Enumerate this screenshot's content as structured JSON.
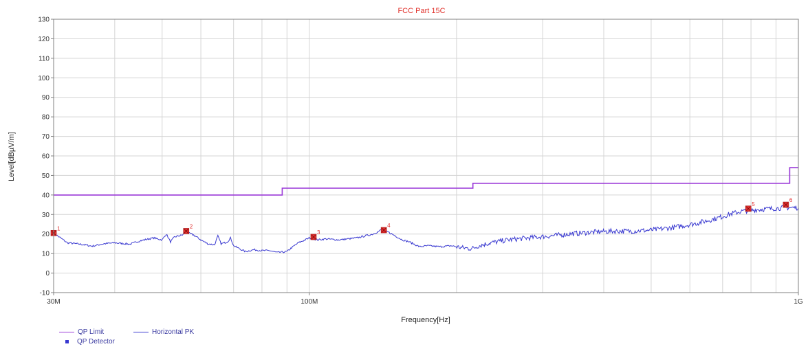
{
  "chart_data": {
    "type": "line",
    "title": "FCC Part 15C",
    "title_color": "#e0302a",
    "xlabel": "Frequency[Hz]",
    "ylabel": "Level[dBµV/m]",
    "x_scale": "log",
    "xlim_hz": [
      30000000,
      1000000000
    ],
    "ylim": [
      -10,
      130
    ],
    "y_ticks": [
      -10,
      0,
      10,
      20,
      30,
      40,
      50,
      60,
      70,
      80,
      90,
      100,
      110,
      120,
      130
    ],
    "x_tick_labels": [
      {
        "hz": 30000000,
        "label": "30M"
      },
      {
        "hz": 100000000,
        "label": "100M"
      },
      {
        "hz": 1000000000,
        "label": "1G"
      }
    ],
    "x_grid_hz": [
      40000000,
      50000000,
      60000000,
      70000000,
      80000000,
      90000000,
      100000000,
      200000000,
      300000000,
      400000000,
      500000000,
      600000000,
      700000000,
      800000000,
      900000000
    ],
    "grid": true,
    "legend_position": "bottom-left",
    "series": [
      {
        "name": "QP Limit",
        "color": "#9a38d8",
        "kind": "step",
        "points": [
          [
            30000000,
            40
          ],
          [
            88000000,
            40
          ],
          [
            88000000,
            43.5
          ],
          [
            216000000,
            43.5
          ],
          [
            216000000,
            46
          ],
          [
            960000000,
            46
          ],
          [
            960000000,
            54
          ],
          [
            1000000000,
            54
          ]
        ]
      },
      {
        "name": "Horizontal PK",
        "color": "#3838d0",
        "kind": "trace",
        "points": [
          [
            30000000,
            20.5
          ],
          [
            31000000,
            18
          ],
          [
            32000000,
            15.5
          ],
          [
            34000000,
            14.8
          ],
          [
            36000000,
            13.8
          ],
          [
            38000000,
            15
          ],
          [
            40000000,
            15.5
          ],
          [
            43000000,
            14.8
          ],
          [
            45000000,
            16.5
          ],
          [
            48000000,
            18
          ],
          [
            50000000,
            17
          ],
          [
            51000000,
            20
          ],
          [
            52000000,
            16
          ],
          [
            53000000,
            18.5
          ],
          [
            55000000,
            19.5
          ],
          [
            56000000,
            21
          ],
          [
            58000000,
            19.5
          ],
          [
            60000000,
            17
          ],
          [
            62000000,
            15
          ],
          [
            64000000,
            14.5
          ],
          [
            65000000,
            19
          ],
          [
            66000000,
            15
          ],
          [
            68000000,
            16
          ],
          [
            69000000,
            18
          ],
          [
            70000000,
            14
          ],
          [
            74000000,
            11
          ],
          [
            77000000,
            12
          ],
          [
            80000000,
            11.5
          ],
          [
            83000000,
            11.5
          ],
          [
            86000000,
            10.5
          ],
          [
            90000000,
            11
          ],
          [
            92000000,
            13
          ],
          [
            95000000,
            15.5
          ],
          [
            98000000,
            17
          ],
          [
            100000000,
            18
          ],
          [
            104000000,
            17
          ],
          [
            108000000,
            17.5
          ],
          [
            115000000,
            17
          ],
          [
            125000000,
            18
          ],
          [
            135000000,
            20
          ],
          [
            140000000,
            22
          ],
          [
            145000000,
            21
          ],
          [
            150000000,
            19
          ],
          [
            155000000,
            17
          ],
          [
            160000000,
            16
          ],
          [
            168000000,
            13.5
          ],
          [
            175000000,
            14
          ],
          [
            185000000,
            13.5
          ],
          [
            195000000,
            14
          ],
          [
            205000000,
            13
          ],
          [
            215000000,
            12.5
          ],
          [
            222000000,
            14
          ],
          [
            235000000,
            15.5
          ],
          [
            255000000,
            17
          ],
          [
            280000000,
            18
          ],
          [
            310000000,
            19
          ],
          [
            340000000,
            20
          ],
          [
            380000000,
            21
          ],
          [
            420000000,
            21.5
          ],
          [
            460000000,
            21.5
          ],
          [
            500000000,
            22
          ],
          [
            560000000,
            23.5
          ],
          [
            620000000,
            25.5
          ],
          [
            680000000,
            28
          ],
          [
            720000000,
            30
          ],
          [
            760000000,
            31.5
          ],
          [
            820000000,
            32.5
          ],
          [
            880000000,
            33
          ],
          [
            940000000,
            33.5
          ],
          [
            1000000000,
            33.5
          ]
        ]
      },
      {
        "name": "QP Detector",
        "color": "#e03030",
        "kind": "markers",
        "points": [
          {
            "hz": 30000000,
            "level": 20.5,
            "label": "1"
          },
          {
            "hz": 56000000,
            "level": 21.5,
            "label": "2"
          },
          {
            "hz": 102000000,
            "level": 18.5,
            "label": "3"
          },
          {
            "hz": 142000000,
            "level": 22,
            "label": "4"
          },
          {
            "hz": 790000000,
            "level": 33,
            "label": "5"
          },
          {
            "hz": 943000000,
            "level": 35,
            "label": "6"
          }
        ]
      }
    ],
    "legend": {
      "qp_limit": "QP Limit",
      "horizontal_pk": "Horizontal PK",
      "qp_detector": "QP Detector",
      "qp_detector_marker_color": "#3838d0"
    }
  }
}
